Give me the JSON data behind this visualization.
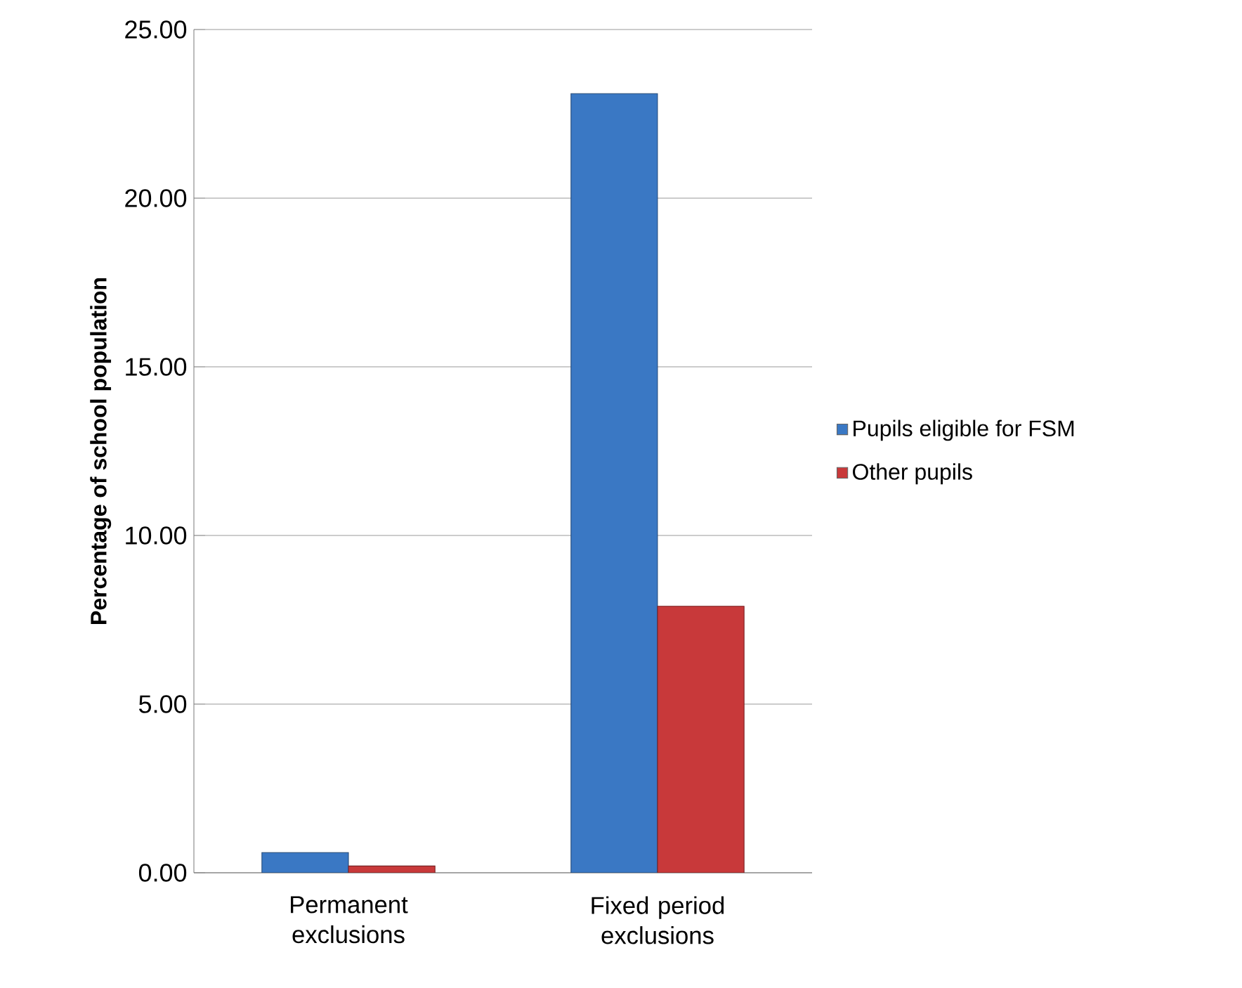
{
  "chart_data": {
    "type": "bar",
    "ylabel": "Percentage of school population",
    "categories": [
      "Permanent exclusions",
      "Fixed period exclusions"
    ],
    "series": [
      {
        "name": "Pupils eligible for FSM",
        "color": "#3a78c4",
        "values": [
          0.6,
          23.1
        ]
      },
      {
        "name": "Other pupils",
        "color": "#c8393a",
        "values": [
          0.2,
          7.9
        ]
      }
    ],
    "ylim": [
      0,
      25
    ],
    "yticks": [
      {
        "value": 0,
        "label": "0.00"
      },
      {
        "value": 5,
        "label": "5.00"
      },
      {
        "value": 10,
        "label": "10.00"
      },
      {
        "value": 15,
        "label": "15.00"
      },
      {
        "value": 20,
        "label": "20.00"
      },
      {
        "value": 25,
        "label": "25.00"
      }
    ],
    "grid": "y",
    "legend": "right"
  }
}
